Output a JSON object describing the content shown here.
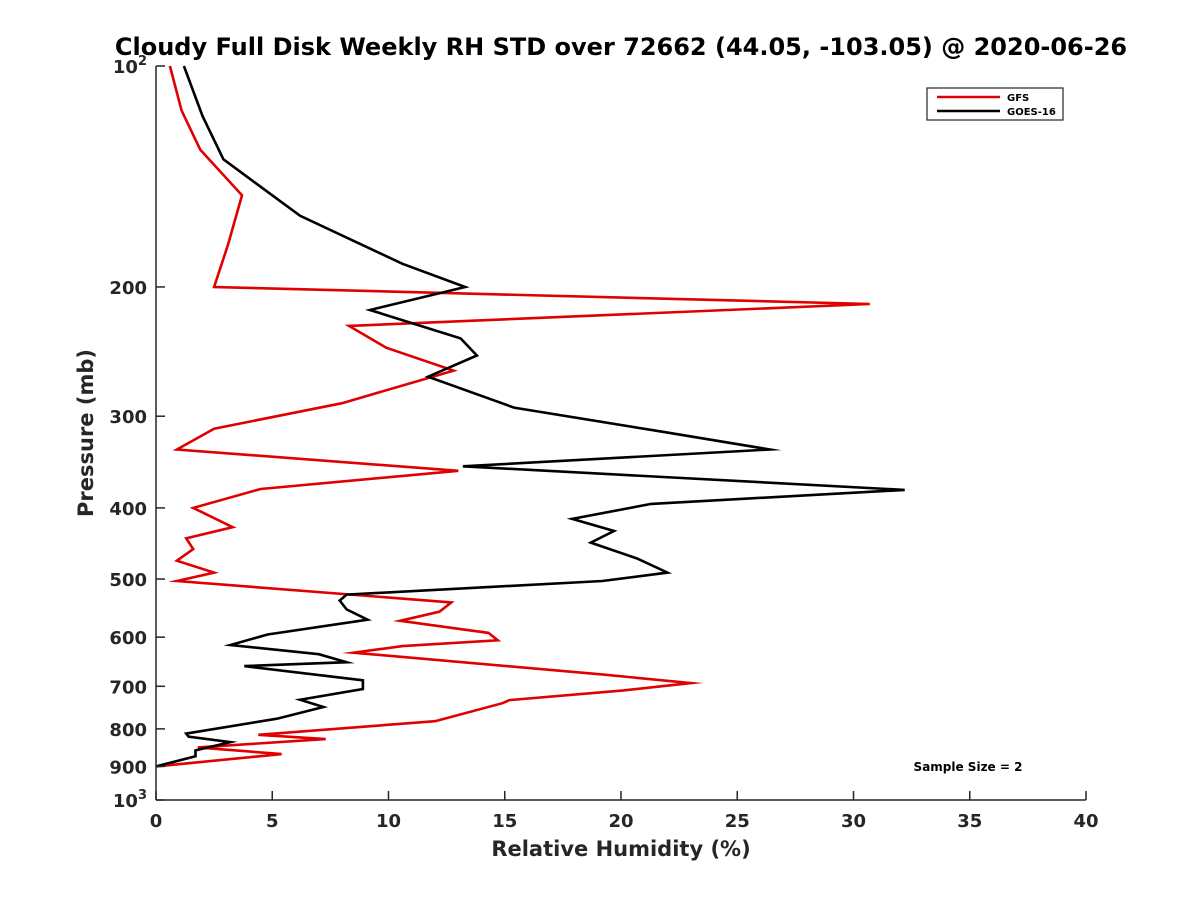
{
  "chart_data": {
    "type": "line",
    "title": "Cloudy Full Disk Weekly RH STD over 72662 (44.05, -103.05) @ 2020-06-26",
    "xlabel": "Relative Humidity (%)",
    "ylabel": "Pressure (mb)",
    "xlim": [
      0,
      40
    ],
    "ylim": [
      100,
      1000
    ],
    "y_scale": "log",
    "y_reversed": true,
    "x_ticks": [
      "0",
      "5",
      "10",
      "15",
      "20",
      "25",
      "30",
      "35",
      "40"
    ],
    "y_ticks": [
      {
        "value": 100,
        "base": "10",
        "exp": "2"
      },
      {
        "value": 200,
        "label": "200"
      },
      {
        "value": 300,
        "label": "300"
      },
      {
        "value": 400,
        "label": "400"
      },
      {
        "value": 500,
        "label": "500"
      },
      {
        "value": 600,
        "label": "600"
      },
      {
        "value": 700,
        "label": "700"
      },
      {
        "value": 800,
        "label": "800"
      },
      {
        "value": 900,
        "label": "900"
      },
      {
        "value": 1000,
        "base": "10",
        "exp": "3"
      }
    ],
    "legend_position": "top-right",
    "annotation": "Sample Size = 2",
    "series": [
      {
        "name": "GFS",
        "color": "#e00000",
        "points": [
          [
            0.6,
            100
          ],
          [
            1.1,
            115
          ],
          [
            1.9,
            130
          ],
          [
            3.7,
            150
          ],
          [
            3.1,
            175
          ],
          [
            2.5,
            200
          ],
          [
            30.7,
            211
          ],
          [
            8.3,
            226
          ],
          [
            9.9,
            242
          ],
          [
            12.8,
            260
          ],
          [
            8.0,
            288
          ],
          [
            2.5,
            312
          ],
          [
            0.9,
            333
          ],
          [
            13.0,
            356
          ],
          [
            4.5,
            377
          ],
          [
            1.6,
            400
          ],
          [
            3.3,
            425
          ],
          [
            1.3,
            440
          ],
          [
            1.6,
            455
          ],
          [
            0.9,
            472
          ],
          [
            2.5,
            490
          ],
          [
            0.9,
            503
          ],
          [
            12.7,
            538
          ],
          [
            12.2,
            554
          ],
          [
            10.5,
            570
          ],
          [
            14.3,
            592
          ],
          [
            14.7,
            606
          ],
          [
            10.6,
            617
          ],
          [
            8.5,
            630
          ],
          [
            19.3,
            675
          ],
          [
            23.0,
            693
          ],
          [
            20.1,
            709
          ],
          [
            15.2,
            731
          ],
          [
            14.9,
            738
          ],
          [
            12.0,
            781
          ],
          [
            4.4,
            815
          ],
          [
            7.3,
            826
          ],
          [
            1.8,
            848
          ],
          [
            5.4,
            866
          ],
          [
            0.0,
            900
          ]
        ]
      },
      {
        "name": "GOES-16",
        "color": "#000000",
        "points": [
          [
            1.2,
            100
          ],
          [
            2.0,
            117
          ],
          [
            2.9,
            134
          ],
          [
            6.2,
            160
          ],
          [
            10.6,
            186
          ],
          [
            13.3,
            200
          ],
          [
            9.2,
            215
          ],
          [
            13.1,
            235
          ],
          [
            13.8,
            248
          ],
          [
            11.7,
            265
          ],
          [
            15.4,
            292
          ],
          [
            21.8,
            315
          ],
          [
            26.4,
            333
          ],
          [
            13.2,
            351
          ],
          [
            32.2,
            378
          ],
          [
            21.3,
            395
          ],
          [
            17.9,
            414
          ],
          [
            19.7,
            430
          ],
          [
            18.7,
            446
          ],
          [
            20.7,
            469
          ],
          [
            22.0,
            490
          ],
          [
            19.2,
            503
          ],
          [
            8.2,
            525
          ],
          [
            7.9,
            535
          ],
          [
            8.2,
            550
          ],
          [
            9.1,
            568
          ],
          [
            4.8,
            595
          ],
          [
            3.2,
            615
          ],
          [
            7.0,
            633
          ],
          [
            8.2,
            649
          ],
          [
            3.8,
            657
          ],
          [
            8.9,
            687
          ],
          [
            8.9,
            706
          ],
          [
            6.2,
            730
          ],
          [
            7.2,
            747
          ],
          [
            5.2,
            775
          ],
          [
            1.3,
            812
          ],
          [
            1.4,
            820
          ],
          [
            3.2,
            834
          ],
          [
            1.7,
            856
          ],
          [
            1.7,
            872
          ],
          [
            0.0,
            900
          ]
        ]
      }
    ]
  }
}
